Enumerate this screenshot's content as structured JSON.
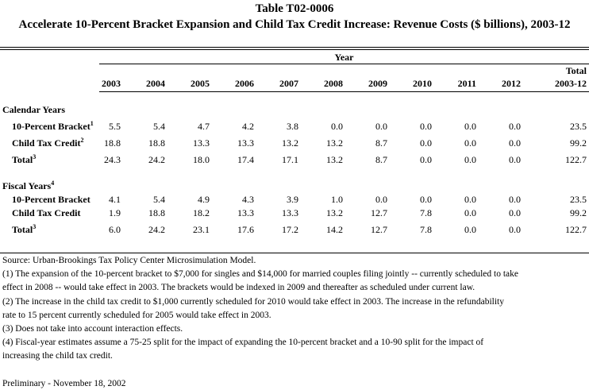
{
  "table_id": "Table T02-0006",
  "title": "Accelerate 10-Percent Bracket Expansion and Child Tax Credit Increase: Revenue Costs ($ billions), 2003-12",
  "header": {
    "group_label": "Year",
    "columns": [
      "2003",
      "2004",
      "2005",
      "2006",
      "2007",
      "2008",
      "2009",
      "2010",
      "2011",
      "2012"
    ],
    "total_label_line1": "Total",
    "total_label_line2": "2003-12"
  },
  "sections": [
    {
      "title": "Calendar Years",
      "title_sup": "",
      "rows": [
        {
          "label": "10-Percent Bracket",
          "sup": "1",
          "values": [
            "5.5",
            "5.4",
            "4.7",
            "4.2",
            "3.8",
            "0.0",
            "0.0",
            "0.0",
            "0.0",
            "0.0"
          ],
          "total": "23.5"
        },
        {
          "label": "Child Tax Credit",
          "sup": "2",
          "values": [
            "18.8",
            "18.8",
            "13.3",
            "13.3",
            "13.2",
            "13.2",
            "8.7",
            "0.0",
            "0.0",
            "0.0"
          ],
          "total": "99.2"
        },
        {
          "label": "Total",
          "sup": "3",
          "values": [
            "24.3",
            "24.2",
            "18.0",
            "17.4",
            "17.1",
            "13.2",
            "8.7",
            "0.0",
            "0.0",
            "0.0"
          ],
          "total": "122.7"
        }
      ]
    },
    {
      "title": "Fiscal Years",
      "title_sup": "4",
      "rows": [
        {
          "label": "10-Percent Bracket",
          "sup": "",
          "values": [
            "4.1",
            "5.4",
            "4.9",
            "4.3",
            "3.9",
            "1.0",
            "0.0",
            "0.0",
            "0.0",
            "0.0"
          ],
          "total": "23.5"
        },
        {
          "label": "Child Tax Credit",
          "sup": "",
          "values": [
            "1.9",
            "18.8",
            "18.2",
            "13.3",
            "13.3",
            "13.2",
            "12.7",
            "7.8",
            "0.0",
            "0.0"
          ],
          "total": "99.2"
        },
        {
          "label": "Total",
          "sup": "3",
          "values": [
            "6.0",
            "24.2",
            "23.1",
            "17.6",
            "17.2",
            "14.2",
            "12.7",
            "7.8",
            "0.0",
            "0.0"
          ],
          "total": "122.7"
        }
      ]
    }
  ],
  "notes": [
    "Source: Urban-Brookings Tax Policy Center Microsimulation Model.",
    "(1) The expansion of the 10-percent bracket to $7,000 for singles and $14,000 for married couples filing jointly -- currently scheduled to take",
    "effect in 2008 -- would take effect in 2003.  The brackets would be indexed in 2009 and thereafter as scheduled under current law.",
    "(2) The increase in the child tax credit to $1,000 currently scheduled for 2010 would take effect in 2003.  The increase in the refundability",
    "rate to 15 percent currently scheduled for 2005 would take effect in 2003.",
    "(3) Does not take into account interaction effects.",
    "(4) Fiscal-year estimates assume a 75-25 split for the impact of expanding the 10-percent bracket and a 10-90 split for the impact of",
    "increasing the child tax credit.",
    "",
    "Preliminary - November 18, 2002"
  ]
}
